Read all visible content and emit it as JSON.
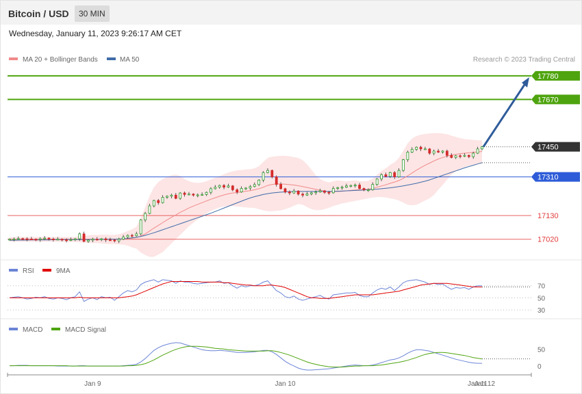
{
  "header": {
    "title": "Bitcoin / USD",
    "timeframe": "30 MIN",
    "datetime": "Wednesday, January 11, 2023 9:26:17 AM CET"
  },
  "legend": {
    "ma20": "MA 20 + Bollinger Bands",
    "ma50": "MA 50",
    "credit": "Research © 2023 Trading Central",
    "rsi": "RSI",
    "rsi_ma": "9MA",
    "macd": "MACD",
    "macd_signal": "MACD Signal"
  },
  "colors": {
    "green": "#4ea40e",
    "red": "#e23c3c",
    "blue": "#2e5cd8",
    "ma20": "#f08a8a",
    "ma50": "#3f6ba8",
    "band": "#fde2e2",
    "arrow": "#2f5b9a",
    "rsi": "#6b84d6",
    "macd_signal": "#4ea40e"
  },
  "chart_data": [
    {
      "type": "candlestick",
      "x_labels": [
        "Jan 9",
        "Jan 10",
        "Jan 11",
        "Jan 12"
      ],
      "ylim": [
        16930,
        17840
      ],
      "price_levels": [
        {
          "value": 17780,
          "label": "17780",
          "kind": "resistance"
        },
        {
          "value": 17670,
          "label": "17670",
          "kind": "resistance"
        },
        {
          "value": 17450,
          "label": "17450",
          "kind": "last"
        },
        {
          "value": 17310,
          "label": "17310",
          "kind": "pivot"
        },
        {
          "value": 17130,
          "label": "17130",
          "kind": "support"
        },
        {
          "value": 17020,
          "label": "17020",
          "kind": "support"
        }
      ],
      "close": [
        17020,
        17021,
        17023,
        17022,
        17021,
        17020,
        17018,
        17022,
        17025,
        17021,
        17019,
        17020,
        17017,
        17015,
        17018,
        17022,
        17045,
        17010,
        17016,
        17020,
        17018,
        17022,
        17017,
        17016,
        17012,
        17020,
        17030,
        17038,
        17036,
        17045,
        17110,
        17140,
        17175,
        17200,
        17190,
        17215,
        17220,
        17225,
        17210,
        17235,
        17228,
        17230,
        17225,
        17226,
        17228,
        17238,
        17255,
        17262,
        17270,
        17262,
        17268,
        17250,
        17240,
        17256,
        17258,
        17265,
        17274,
        17295,
        17330,
        17340,
        17310,
        17275,
        17255,
        17240,
        17235,
        17244,
        17230,
        17225,
        17231,
        17236,
        17240,
        17245,
        17238,
        17236,
        17256,
        17260,
        17262,
        17268,
        17270,
        17272,
        17256,
        17250,
        17250,
        17275,
        17300,
        17320,
        17312,
        17330,
        17310,
        17340,
        17390,
        17425,
        17438,
        17448,
        17440,
        17440,
        17420,
        17430,
        17425,
        17430,
        17410,
        17400,
        17408,
        17406,
        17410,
        17404,
        17420,
        17440,
        17450
      ],
      "open_offset_note": "",
      "ma20": [
        17018,
        17019,
        17019,
        17020,
        17020,
        17020,
        17020,
        17020,
        17020,
        17020,
        17020,
        17020,
        17019,
        17019,
        17019,
        17019,
        17020,
        17020,
        17020,
        17020,
        17019,
        17020,
        17020,
        17019,
        17019,
        17020,
        17021,
        17023,
        17025,
        17028,
        17035,
        17045,
        17058,
        17072,
        17084,
        17097,
        17110,
        17122,
        17133,
        17145,
        17155,
        17165,
        17174,
        17182,
        17190,
        17198,
        17206,
        17213,
        17220,
        17226,
        17231,
        17235,
        17237,
        17240,
        17243,
        17246,
        17250,
        17255,
        17262,
        17270,
        17275,
        17277,
        17277,
        17276,
        17274,
        17272,
        17269,
        17265,
        17261,
        17256,
        17252,
        17248,
        17244,
        17241,
        17241,
        17242,
        17243,
        17245,
        17247,
        17249,
        17250,
        17251,
        17252,
        17256,
        17262,
        17268,
        17273,
        17280,
        17286,
        17293,
        17303,
        17315,
        17328,
        17341,
        17353,
        17364,
        17374,
        17384,
        17393,
        17400,
        17406,
        17411,
        17415,
        17418,
        17420,
        17422,
        17424,
        17426,
        17428
      ],
      "ma50": [
        17015,
        17015,
        17016,
        17016,
        17016,
        17017,
        17017,
        17017,
        17017,
        17017,
        17018,
        17018,
        17018,
        17018,
        17018,
        17018,
        17018,
        17018,
        17018,
        17019,
        17019,
        17019,
        17019,
        17020,
        17020,
        17021,
        17022,
        17024,
        17026,
        17029,
        17033,
        17038,
        17044,
        17050,
        17057,
        17064,
        17071,
        17078,
        17085,
        17092,
        17099,
        17106,
        17113,
        17120,
        17127,
        17134,
        17141,
        17149,
        17157,
        17165,
        17173,
        17181,
        17189,
        17197,
        17205,
        17212,
        17218,
        17223,
        17228,
        17232,
        17235,
        17237,
        17239,
        17240,
        17241,
        17242,
        17242,
        17242,
        17242,
        17242,
        17242,
        17242,
        17242,
        17242,
        17243,
        17243,
        17244,
        17245,
        17246,
        17247,
        17248,
        17249,
        17250,
        17252,
        17253,
        17255,
        17257,
        17259,
        17262,
        17265,
        17268,
        17272,
        17276,
        17280,
        17285,
        17290,
        17296,
        17303,
        17310,
        17317,
        17324,
        17331,
        17338,
        17345,
        17352,
        17358,
        17364,
        17370,
        17376
      ],
      "bb_upper": [
        17030,
        17030,
        17031,
        17031,
        17031,
        17031,
        17031,
        17031,
        17031,
        17031,
        17031,
        17031,
        17031,
        17031,
        17031,
        17031,
        17034,
        17037,
        17038,
        17040,
        17040,
        17041,
        17041,
        17040,
        17040,
        17043,
        17050,
        17058,
        17066,
        17078,
        17120,
        17170,
        17220,
        17262,
        17286,
        17300,
        17310,
        17318,
        17320,
        17315,
        17300,
        17290,
        17284,
        17282,
        17284,
        17290,
        17298,
        17306,
        17314,
        17322,
        17330,
        17336,
        17340,
        17342,
        17344,
        17346,
        17350,
        17360,
        17380,
        17398,
        17404,
        17406,
        17408,
        17408,
        17406,
        17402,
        17398,
        17388,
        17368,
        17344,
        17318,
        17300,
        17290,
        17284,
        17290,
        17294,
        17292,
        17290,
        17292,
        17294,
        17290,
        17290,
        17292,
        17302,
        17320,
        17338,
        17350,
        17366,
        17378,
        17398,
        17432,
        17466,
        17488,
        17500,
        17506,
        17510,
        17512,
        17514,
        17514,
        17512,
        17508,
        17502,
        17496,
        17490,
        17486,
        17484,
        17482,
        17480,
        17480
      ],
      "bb_lower": [
        17008,
        17008,
        17008,
        17008,
        17008,
        17008,
        17008,
        17008,
        17008,
        17008,
        17008,
        17008,
        17007,
        17007,
        17007,
        17007,
        17006,
        17004,
        17003,
        17002,
        17002,
        17000,
        16998,
        16997,
        16997,
        16996,
        16994,
        16990,
        16982,
        16976,
        16958,
        16946,
        16938,
        16938,
        16948,
        16960,
        16980,
        17000,
        17020,
        17040,
        17060,
        17080,
        17096,
        17112,
        17126,
        17140,
        17152,
        17160,
        17168,
        17172,
        17174,
        17174,
        17172,
        17170,
        17168,
        17166,
        17165,
        17160,
        17154,
        17150,
        17150,
        17152,
        17154,
        17160,
        17166,
        17176,
        17184,
        17180,
        17170,
        17160,
        17155,
        17155,
        17160,
        17166,
        17174,
        17180,
        17186,
        17190,
        17194,
        17198,
        17202,
        17206,
        17210,
        17214,
        17216,
        17216,
        17214,
        17210,
        17206,
        17200,
        17190,
        17180,
        17178,
        17180,
        17190,
        17200,
        17210,
        17226,
        17250,
        17272,
        17296,
        17320,
        17336,
        17348,
        17356,
        17362,
        17366,
        17370,
        17372
      ]
    },
    {
      "type": "line",
      "name": "RSI",
      "ylim": [
        20,
        90
      ],
      "ticks": [
        70,
        50,
        30
      ],
      "series": [
        {
          "name": "RSI",
          "values": [
            50,
            51,
            52,
            50,
            48,
            49,
            51,
            50,
            52,
            49,
            48,
            50,
            49,
            47,
            50,
            52,
            60,
            44,
            48,
            50,
            47,
            52,
            50,
            51,
            46,
            52,
            58,
            62,
            60,
            63,
            72,
            76,
            78,
            80,
            76,
            80,
            79,
            78,
            74,
            78,
            76,
            76,
            74,
            73,
            74,
            75,
            76,
            76,
            78,
            74,
            75,
            70,
            66,
            70,
            68,
            70,
            70,
            72,
            76,
            78,
            70,
            62,
            58,
            52,
            50,
            53,
            48,
            46,
            48,
            50,
            52,
            54,
            50,
            48,
            55,
            56,
            57,
            58,
            58,
            59,
            54,
            52,
            52,
            58,
            63,
            66,
            64,
            68,
            62,
            68,
            75,
            78,
            79,
            80,
            78,
            76,
            72,
            74,
            72,
            73,
            68,
            64,
            67,
            66,
            67,
            64,
            68,
            70,
            70
          ]
        },
        {
          "name": "9MA",
          "values": [
            50,
            50,
            50,
            50,
            50,
            50,
            50,
            50,
            50,
            50,
            50,
            50,
            50,
            50,
            50,
            50,
            51,
            50,
            50,
            50,
            50,
            50,
            50,
            50,
            50,
            50,
            51,
            52,
            53,
            55,
            58,
            61,
            64,
            67,
            70,
            73,
            75,
            77,
            77,
            77,
            77,
            77,
            77,
            77,
            76,
            76,
            76,
            76,
            76,
            75,
            75,
            74,
            73,
            72,
            71,
            71,
            70,
            70,
            70,
            71,
            71,
            70,
            69,
            67,
            64,
            61,
            58,
            55,
            52,
            50,
            50,
            49,
            49,
            49,
            50,
            51,
            52,
            53,
            54,
            55,
            55,
            55,
            55,
            55,
            56,
            57,
            58,
            59,
            60,
            61,
            63,
            65,
            67,
            69,
            71,
            72,
            73,
            74,
            74,
            74,
            74,
            73,
            72,
            71,
            70,
            69,
            68,
            68,
            68
          ]
        }
      ]
    },
    {
      "type": "line",
      "name": "MACD",
      "ylim": [
        -22,
        95
      ],
      "ticks": [
        50,
        0
      ],
      "series": [
        {
          "name": "MACD",
          "values": [
            1,
            1,
            2,
            2,
            2,
            1,
            1,
            1,
            1,
            1,
            1,
            0,
            0,
            0,
            0,
            0,
            1,
            1,
            0,
            0,
            0,
            0,
            0,
            0,
            0,
            0,
            1,
            2,
            3,
            5,
            12,
            22,
            34,
            46,
            54,
            60,
            64,
            67,
            69,
            68,
            64,
            60,
            56,
            52,
            48,
            46,
            45,
            45,
            46,
            45,
            44,
            42,
            40,
            40,
            40,
            41,
            42,
            44,
            46,
            46,
            42,
            34,
            24,
            14,
            6,
            0,
            -6,
            -10,
            -12,
            -12,
            -11,
            -10,
            -9,
            -8,
            -6,
            -4,
            -2,
            0,
            2,
            3,
            2,
            1,
            1,
            3,
            6,
            10,
            14,
            18,
            20,
            24,
            30,
            38,
            44,
            48,
            48,
            46,
            44,
            40,
            36,
            32,
            28,
            24,
            20,
            17,
            14,
            11,
            9,
            8,
            8
          ]
        },
        {
          "name": "MACD Signal",
          "values": [
            1,
            1,
            1,
            1,
            1,
            1,
            1,
            1,
            1,
            1,
            1,
            1,
            1,
            1,
            0,
            0,
            0,
            0,
            0,
            0,
            0,
            0,
            0,
            0,
            0,
            0,
            0,
            1,
            1,
            2,
            4,
            7,
            12,
            18,
            25,
            32,
            38,
            44,
            49,
            53,
            56,
            58,
            58,
            58,
            57,
            56,
            54,
            52,
            51,
            50,
            48,
            47,
            46,
            45,
            44,
            44,
            44,
            44,
            44,
            45,
            45,
            43,
            40,
            36,
            32,
            27,
            22,
            17,
            12,
            8,
            5,
            2,
            0,
            -2,
            -3,
            -3,
            -3,
            -2,
            -1,
            0,
            0,
            1,
            1,
            1,
            2,
            3,
            5,
            7,
            9,
            11,
            14,
            17,
            21,
            25,
            30,
            34,
            37,
            39,
            40,
            40,
            39,
            37,
            35,
            33,
            31,
            28,
            25,
            23,
            21
          ]
        }
      ]
    }
  ]
}
